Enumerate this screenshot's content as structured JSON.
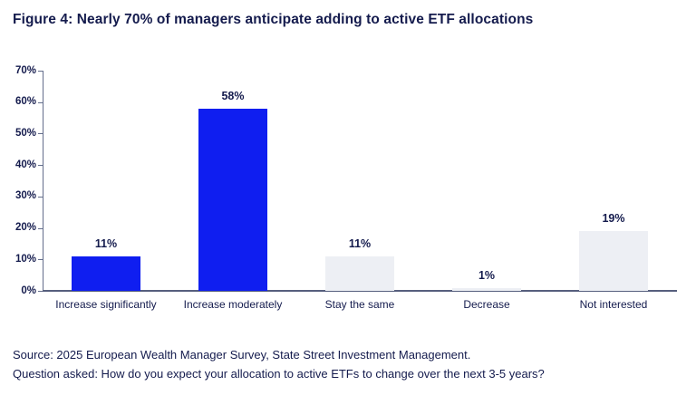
{
  "title": "Figure 4: Nearly 70% of managers anticipate adding to active ETF allocations",
  "footer": {
    "source_line": "Source: 2025 European Wealth Manager Survey, State Street Investment Management.",
    "question_line": "Question asked: How do you expect your allocation to active ETFs to change over the next 3-5 years?"
  },
  "colors": {
    "highlight_bar": "#0f1ef0",
    "muted_bar": "#edeff4",
    "text_navy": "#141b4d",
    "axis": "#646e8c",
    "baseline": "#565f7d",
    "background": "#ffffff"
  },
  "chart_data": {
    "type": "bar",
    "title": "Figure 4: Nearly 70% of managers anticipate adding to active ETF allocations",
    "categories": [
      "Increase significantly",
      "Increase moderately",
      "Stay the same",
      "Decrease",
      "Not interested"
    ],
    "values": [
      11,
      58,
      11,
      1,
      19
    ],
    "value_labels": [
      "11%",
      "58%",
      "11%",
      "1%",
      "19%"
    ],
    "bar_colors": [
      "#0f1ef0",
      "#0f1ef0",
      "#edeff4",
      "#edeff4",
      "#edeff4"
    ],
    "xlabel": "",
    "ylabel": "",
    "ylim": [
      0,
      70
    ],
    "ytick_values": [
      0,
      10,
      20,
      30,
      40,
      50,
      60,
      70
    ],
    "ytick_labels": [
      "0%",
      "10%",
      "20%",
      "30%",
      "40%",
      "50%",
      "60%",
      "70%"
    ],
    "grid": false,
    "legend": null
  }
}
